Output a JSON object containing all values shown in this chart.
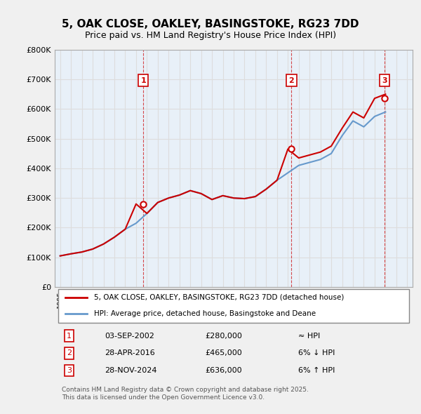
{
  "title": "5, OAK CLOSE, OAKLEY, BASINGSTOKE, RG23 7DD",
  "subtitle": "Price paid vs. HM Land Registry's House Price Index (HPI)",
  "legend_line1": "5, OAK CLOSE, OAKLEY, BASINGSTOKE, RG23 7DD (detached house)",
  "legend_line2": "HPI: Average price, detached house, Basingstoke and Deane",
  "sale_dates": [
    "03-SEP-2002",
    "28-APR-2016",
    "28-NOV-2024"
  ],
  "sale_prices": [
    280000,
    465000,
    636000
  ],
  "sale_years": [
    2002.67,
    2016.33,
    2024.92
  ],
  "sale_labels": [
    "1",
    "2",
    "3"
  ],
  "sale_notes": [
    "≈ HPI",
    "6% ↓ HPI",
    "6% ↑ HPI"
  ],
  "hpi_years": [
    1995,
    1996,
    1997,
    1998,
    1999,
    2000,
    2001,
    2002,
    2003,
    2004,
    2005,
    2006,
    2007,
    2008,
    2009,
    2010,
    2011,
    2012,
    2013,
    2014,
    2015,
    2016,
    2017,
    2018,
    2019,
    2020,
    2021,
    2022,
    2023,
    2024,
    2025
  ],
  "hpi_values": [
    105000,
    112000,
    118000,
    128000,
    145000,
    168000,
    195000,
    215000,
    248000,
    285000,
    300000,
    310000,
    325000,
    315000,
    295000,
    308000,
    300000,
    298000,
    305000,
    330000,
    360000,
    385000,
    410000,
    420000,
    430000,
    450000,
    510000,
    560000,
    540000,
    575000,
    590000
  ],
  "price_line_years": [
    1995,
    1996,
    1997,
    1998,
    1999,
    2000,
    2001,
    2002,
    2003,
    2004,
    2005,
    2006,
    2007,
    2008,
    2009,
    2010,
    2011,
    2012,
    2013,
    2014,
    2015,
    2016,
    2017,
    2018,
    2019,
    2020,
    2021,
    2022,
    2023,
    2024,
    2025
  ],
  "price_line_values": [
    105000,
    112000,
    118000,
    128000,
    145000,
    168000,
    195000,
    280000,
    248000,
    285000,
    300000,
    310000,
    325000,
    315000,
    295000,
    308000,
    300000,
    298000,
    305000,
    330000,
    360000,
    465000,
    435000,
    445000,
    455000,
    475000,
    535000,
    590000,
    570000,
    636000,
    650000
  ],
  "ylim": [
    0,
    800000
  ],
  "xlim": [
    1994.5,
    2027.5
  ],
  "yticks": [
    0,
    100000,
    200000,
    300000,
    400000,
    500000,
    600000,
    700000,
    800000
  ],
  "ytick_labels": [
    "£0",
    "£100K",
    "£200K",
    "£300K",
    "£400K",
    "£500K",
    "£600K",
    "£700K",
    "£800K"
  ],
  "xticks": [
    1995,
    1996,
    1997,
    1998,
    1999,
    2000,
    2001,
    2002,
    2003,
    2004,
    2005,
    2006,
    2007,
    2008,
    2009,
    2010,
    2011,
    2012,
    2013,
    2014,
    2015,
    2016,
    2017,
    2018,
    2019,
    2020,
    2021,
    2022,
    2023,
    2024,
    2025,
    2026,
    2027
  ],
  "red_color": "#cc0000",
  "blue_color": "#6699cc",
  "marker_border_color": "#cc0000",
  "grid_color": "#dddddd",
  "bg_color": "#e8f0f8",
  "plot_bg": "#ffffff",
  "footer_text": "Contains HM Land Registry data © Crown copyright and database right 2025.\nThis data is licensed under the Open Government Licence v3.0.",
  "table_rows": [
    [
      "1",
      "03-SEP-2002",
      "£280,000",
      "≈ HPI"
    ],
    [
      "2",
      "28-APR-2016",
      "£465,000",
      "6% ↓ HPI"
    ],
    [
      "3",
      "28-NOV-2024",
      "£636,000",
      "6% ↑ HPI"
    ]
  ]
}
